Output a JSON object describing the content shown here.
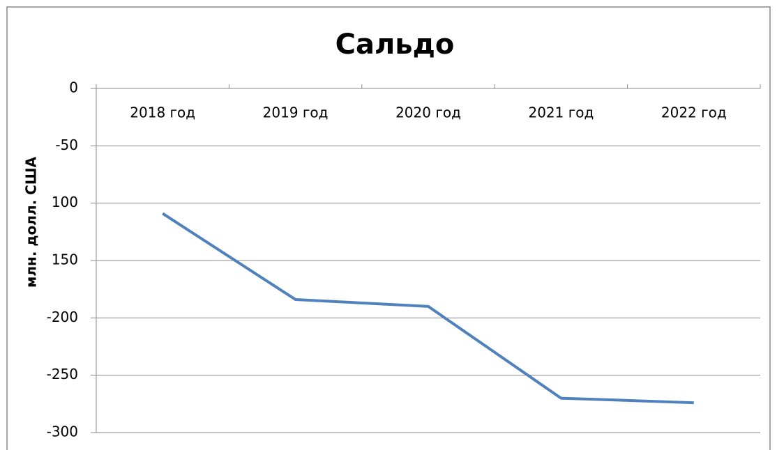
{
  "chart_data": {
    "type": "line",
    "title": "Сальдо",
    "y_label": "млн. долл. США",
    "categories": [
      "2018 год",
      "2019 год",
      "2020 год",
      "2021 год",
      "2022 год"
    ],
    "series": [
      {
        "name": "Сальдо",
        "color": "#4f81bd",
        "values": [
          -109,
          -184,
          -190,
          -270,
          -274
        ]
      }
    ],
    "ylim": [
      0,
      -300
    ],
    "yticks": [
      0,
      -50,
      {
        "value": -100,
        "label": "100"
      },
      {
        "value": -150,
        "label": "150"
      },
      -200,
      -250,
      -300
    ],
    "grid": true
  }
}
